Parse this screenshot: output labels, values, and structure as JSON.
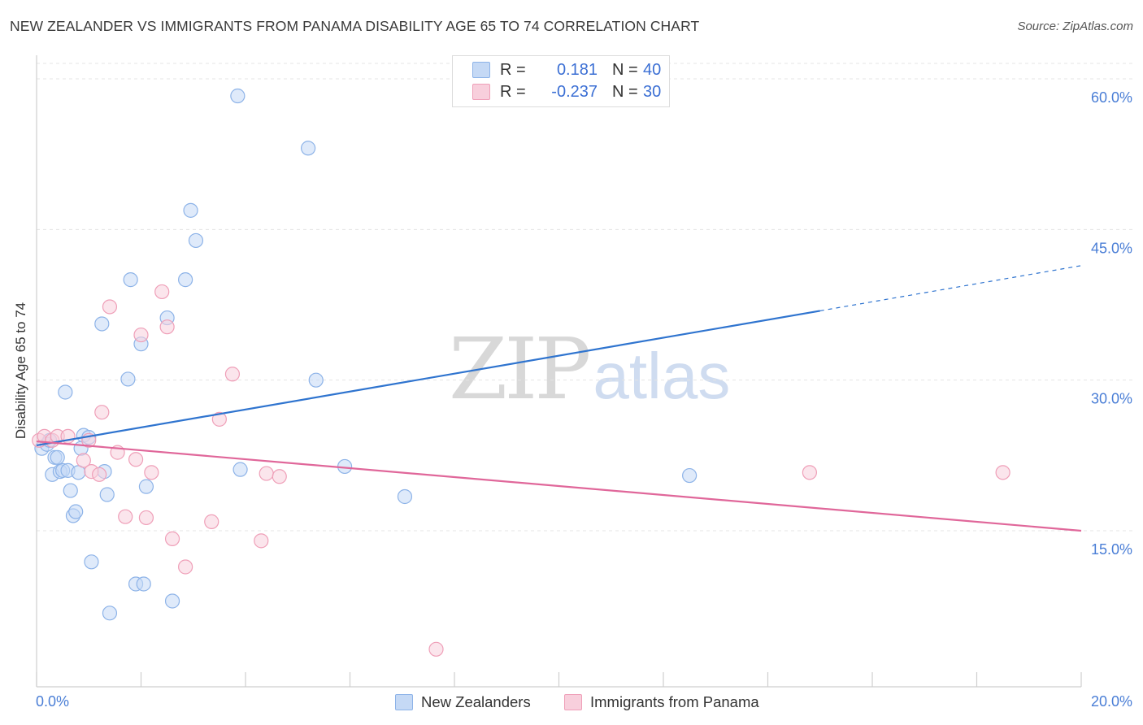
{
  "title": "NEW ZEALANDER VS IMMIGRANTS FROM PANAMA DISABILITY AGE 65 TO 74 CORRELATION CHART",
  "source": "Source: ZipAtlas.com",
  "watermark": {
    "zip": "ZIP",
    "atlas": "atlas"
  },
  "legend": {
    "r_label": "R =",
    "n_label": "N =",
    "rows": [
      {
        "r": "0.181",
        "n": "40"
      },
      {
        "r": "-0.237",
        "n": "30"
      }
    ]
  },
  "colors": {
    "blue_fill": "#c5d9f5",
    "blue_stroke": "#8db3e8",
    "blue_line": "#2f74cf",
    "pink_fill": "#f8cfdc",
    "pink_stroke": "#ef9fb8",
    "pink_line": "#e0679a",
    "tick_label": "#4a7ed6",
    "grid": "#e4e4e4"
  },
  "chart_data": {
    "type": "scatter",
    "title": "NEW ZEALANDER VS IMMIGRANTS FROM PANAMA DISABILITY AGE 65 TO 74 CORRELATION CHART",
    "xlabel": "",
    "ylabel": "Disability Age 65 to 74",
    "xlim": [
      0,
      20
    ],
    "ylim": [
      0,
      60
    ],
    "x_tick_labels": [
      "0.0%",
      "20.0%"
    ],
    "y_ticks": [
      15,
      30,
      45,
      60
    ],
    "y_tick_labels": [
      "15.0%",
      "30.0%",
      "45.0%",
      "60.0%"
    ],
    "grid": true,
    "series": [
      {
        "name": "New Zealanders",
        "color": "blue",
        "r": 0.181,
        "n": 40,
        "points": [
          [
            0.1,
            23.2
          ],
          [
            0.2,
            23.6
          ],
          [
            0.25,
            24.0
          ],
          [
            0.3,
            20.6
          ],
          [
            0.35,
            22.3
          ],
          [
            0.4,
            22.3
          ],
          [
            0.45,
            20.9
          ],
          [
            0.5,
            21.0
          ],
          [
            0.55,
            28.8
          ],
          [
            0.6,
            21.0
          ],
          [
            0.65,
            19.0
          ],
          [
            0.7,
            16.5
          ],
          [
            0.75,
            16.9
          ],
          [
            0.8,
            20.8
          ],
          [
            0.85,
            23.2
          ],
          [
            0.9,
            24.5
          ],
          [
            1.0,
            24.3
          ],
          [
            1.05,
            11.9
          ],
          [
            1.25,
            35.6
          ],
          [
            1.3,
            20.9
          ],
          [
            1.35,
            18.6
          ],
          [
            1.4,
            6.8
          ],
          [
            1.75,
            30.1
          ],
          [
            1.8,
            40.0
          ],
          [
            1.9,
            9.7
          ],
          [
            2.0,
            33.6
          ],
          [
            2.05,
            9.7
          ],
          [
            2.1,
            19.4
          ],
          [
            2.5,
            36.2
          ],
          [
            2.6,
            8.0
          ],
          [
            2.85,
            40.0
          ],
          [
            2.95,
            46.9
          ],
          [
            3.05,
            43.9
          ],
          [
            3.85,
            58.3
          ],
          [
            3.9,
            21.1
          ],
          [
            5.2,
            53.1
          ],
          [
            5.35,
            30.0
          ],
          [
            5.9,
            21.4
          ],
          [
            7.05,
            18.4
          ],
          [
            12.5,
            20.5
          ]
        ],
        "trend": {
          "x0": 0.0,
          "y0": 23.5,
          "x1": 15.0,
          "y1": 36.9,
          "dashed_to_x": 20.0,
          "dashed_to_y": 41.4
        }
      },
      {
        "name": "Immigrants from Panama",
        "color": "pink",
        "r": -0.237,
        "n": 30,
        "points": [
          [
            0.05,
            24.0
          ],
          [
            0.15,
            24.4
          ],
          [
            0.3,
            24.0
          ],
          [
            0.4,
            24.4
          ],
          [
            0.6,
            24.4
          ],
          [
            0.9,
            22.0
          ],
          [
            1.0,
            24.0
          ],
          [
            1.05,
            20.9
          ],
          [
            1.2,
            20.6
          ],
          [
            1.25,
            26.8
          ],
          [
            1.4,
            37.3
          ],
          [
            1.55,
            22.8
          ],
          [
            1.7,
            16.4
          ],
          [
            1.9,
            22.1
          ],
          [
            2.0,
            34.5
          ],
          [
            2.1,
            16.3
          ],
          [
            2.2,
            20.8
          ],
          [
            2.4,
            38.8
          ],
          [
            2.5,
            35.3
          ],
          [
            2.6,
            14.2
          ],
          [
            2.85,
            11.4
          ],
          [
            3.35,
            15.9
          ],
          [
            3.5,
            26.1
          ],
          [
            3.75,
            30.6
          ],
          [
            4.3,
            14.0
          ],
          [
            4.4,
            20.7
          ],
          [
            4.65,
            20.4
          ],
          [
            7.65,
            3.2
          ],
          [
            14.8,
            20.8
          ],
          [
            18.5,
            20.8
          ]
        ],
        "trend": {
          "x0": 0.0,
          "y0": 23.9,
          "x1": 20.0,
          "y1": 15.0
        }
      }
    ]
  },
  "bottom_legend": [
    "New Zealanders",
    "Immigrants from Panama"
  ]
}
